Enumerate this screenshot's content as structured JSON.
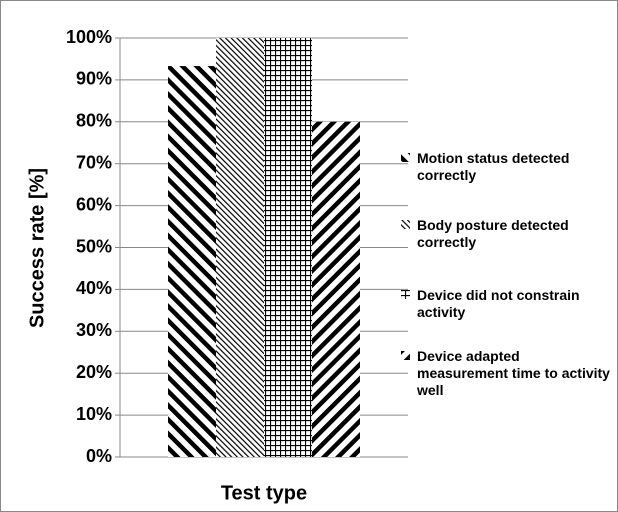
{
  "chart_data": {
    "type": "bar",
    "categories": [
      null
    ],
    "series": [
      {
        "name": "Motion status detected correctly",
        "color": "#000000",
        "pattern": "wide-diagonal-down",
        "values": [
          93.3
        ]
      },
      {
        "name": "Body posture detected correctly",
        "color": "#000000",
        "pattern": "fine-diagonal-down",
        "values": [
          100
        ]
      },
      {
        "name": "Device did not constrain activity",
        "color": "#000000",
        "pattern": "grid",
        "values": [
          100
        ]
      },
      {
        "name": "Device adapted measurement time to activity well",
        "color": "#000000",
        "pattern": "wide-diagonal-up",
        "values": [
          80
        ]
      }
    ],
    "ylabel": "Success rate [%]",
    "xlabel": "Test type",
    "ylim": [
      0,
      100
    ],
    "yticks": [
      {
        "value": 0,
        "label": "0%"
      },
      {
        "value": 10,
        "label": "10%"
      },
      {
        "value": 20,
        "label": "20%"
      },
      {
        "value": 30,
        "label": "30%"
      },
      {
        "value": 40,
        "label": "40%"
      },
      {
        "value": 50,
        "label": "50%"
      },
      {
        "value": 60,
        "label": "60%"
      },
      {
        "value": 70,
        "label": "70%"
      },
      {
        "value": 80,
        "label": "80%"
      },
      {
        "value": 90,
        "label": "90%"
      },
      {
        "value": 100,
        "label": "100%"
      }
    ],
    "grid": true,
    "legend": "right"
  }
}
